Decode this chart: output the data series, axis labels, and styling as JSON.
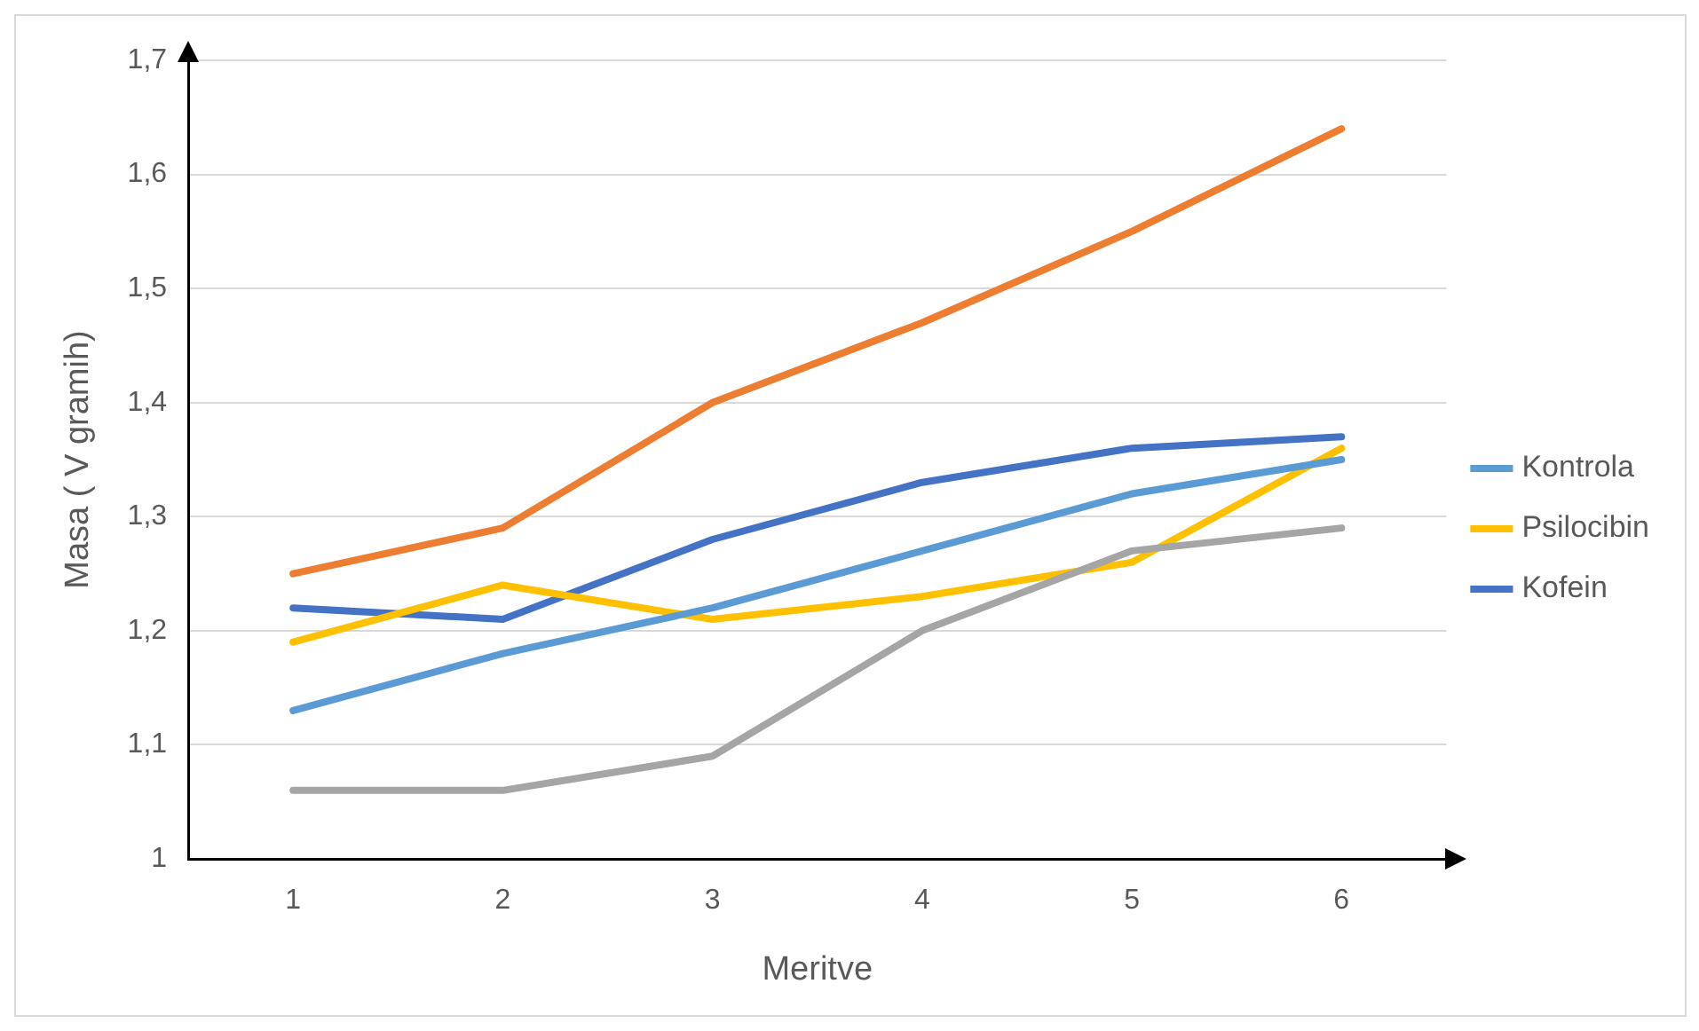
{
  "chart_data": {
    "type": "line",
    "xlabel": "Meritve",
    "ylabel": "Masa ( V gramih)",
    "categories": [
      "1",
      "2",
      "3",
      "4",
      "5",
      "6"
    ],
    "series": [
      {
        "name": "Kontrola",
        "color": "#5b9bd5",
        "values": [
          1.13,
          1.18,
          1.22,
          1.27,
          1.32,
          1.35
        ]
      },
      {
        "color": "#ed7d31",
        "values": [
          1.25,
          1.29,
          1.4,
          1.47,
          1.55,
          1.64
        ]
      },
      {
        "color": "#a5a5a5",
        "values": [
          1.06,
          1.06,
          1.09,
          1.2,
          1.27,
          1.29
        ]
      },
      {
        "name": "Psilocibin",
        "color": "#ffc000",
        "values": [
          1.19,
          1.24,
          1.21,
          1.23,
          1.26,
          1.36
        ]
      },
      {
        "name": "Kofein",
        "color": "#4472c4",
        "values": [
          1.22,
          1.21,
          1.28,
          1.33,
          1.36,
          1.37
        ]
      }
    ],
    "ylim": [
      1,
      1.7
    ],
    "yticks": [
      1,
      {
        "value": 1.1,
        "label": "1,1"
      },
      {
        "value": 1.2,
        "label": "1,2"
      },
      {
        "value": 1.3,
        "label": "1,3"
      },
      {
        "value": 1.4,
        "label": "1,4"
      },
      {
        "value": 1.5,
        "label": "1,5"
      },
      {
        "value": 1.6,
        "label": "1,6"
      },
      {
        "value": 1.7,
        "label": "1,7"
      }
    ],
    "grid": "y",
    "legend": "right",
    "marker": "none",
    "line_style": "solid"
  }
}
